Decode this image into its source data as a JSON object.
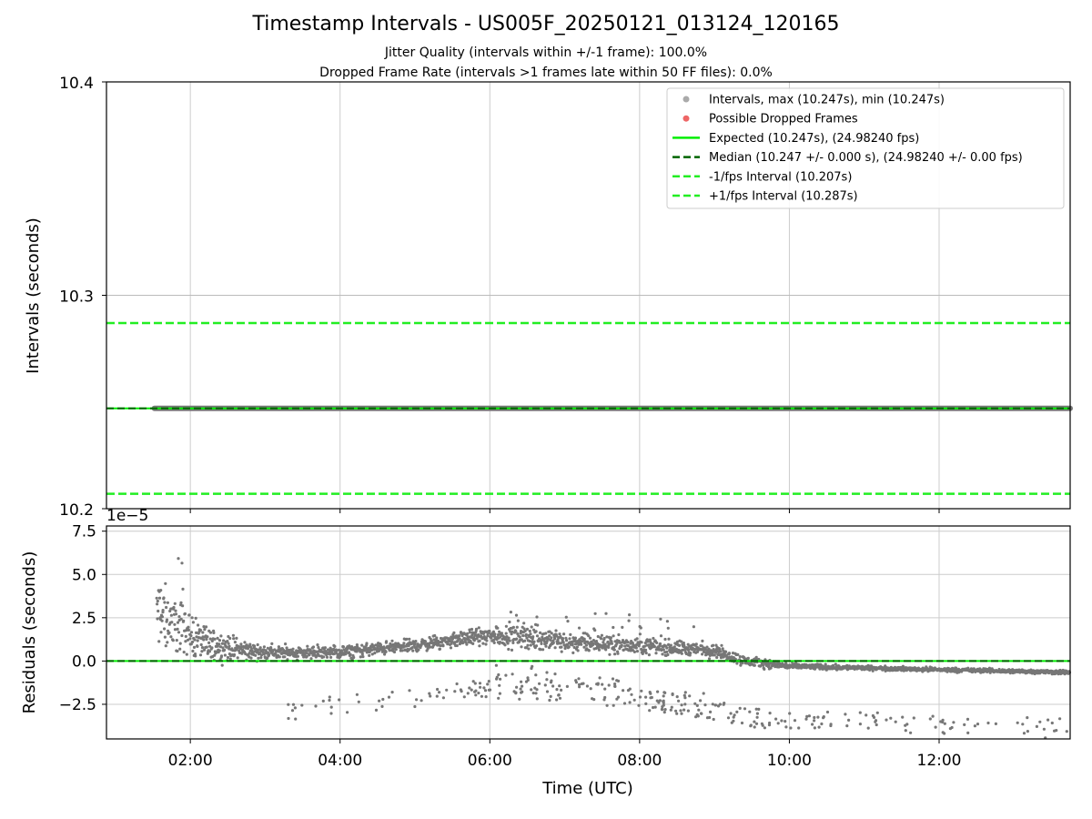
{
  "header": {
    "title": "Timestamp Intervals - US005F_20250121_013124_120165",
    "subtitle1": "Jitter Quality (intervals within +/-1 frame): 100.0%",
    "subtitle2": "Dropped Frame Rate (intervals >1 frames late within 50 FF files): 0.0%"
  },
  "colors": {
    "expected": "#00ee00",
    "interval_lines": "#22ee22",
    "median": "#006400",
    "points": "#777777",
    "dropped": "#ee4444"
  },
  "chart_data": [
    {
      "type": "scatter",
      "panel": "top",
      "ylabel": "Intervals (seconds)",
      "ylim": [
        10.2,
        10.4
      ],
      "yticks": [
        "10.2",
        "10.3",
        "10.4"
      ],
      "xlim_hours": [
        0.88,
        13.75
      ],
      "grid": true,
      "legend_position": "top-right",
      "legend": [
        {
          "kind": "marker",
          "color": "#aaaaaa",
          "text": "Intervals, max (10.247s), min (10.247s)"
        },
        {
          "kind": "marker",
          "color": "#ee6666",
          "text": "Possible Dropped Frames"
        },
        {
          "kind": "solid",
          "color": "#00ee00",
          "text": "Expected (10.247s), (24.98240 fps)"
        },
        {
          "kind": "dashed",
          "color": "#006400",
          "text": "Median (10.247 +/- 0.000 s), (24.98240 +/- 0.00 fps)"
        },
        {
          "kind": "dashed",
          "color": "#22ee22",
          "text": "-1/fps Interval (10.207s)"
        },
        {
          "kind": "dashed",
          "color": "#22ee22",
          "text": "+1/fps Interval (10.287s)"
        }
      ],
      "series": [
        {
          "name": "Intervals",
          "x_range_hours": [
            1.52,
            13.75
          ],
          "y": 10.247
        },
        {
          "name": "Expected",
          "y": 10.247
        },
        {
          "name": "Median",
          "y": 10.247
        },
        {
          "name": "-1/fps Interval",
          "y": 10.207
        },
        {
          "name": "+1/fps Interval",
          "y": 10.287
        }
      ]
    },
    {
      "type": "scatter",
      "panel": "bottom",
      "ylabel": "Residuals (seconds)",
      "xlabel": "Time (UTC)",
      "offset_text": "1e−5",
      "ylim": [
        -4.5,
        7.8
      ],
      "yticks": [
        -2.5,
        0.0,
        2.5,
        5.0,
        7.5
      ],
      "ytick_labels": [
        "−2.5",
        "0.0",
        "2.5",
        "5.0",
        "7.5"
      ],
      "xlim_hours": [
        0.88,
        13.75
      ],
      "xticks_hours": [
        2,
        4,
        6,
        8,
        10,
        12
      ],
      "xtick_labels": [
        "02:00",
        "04:00",
        "06:00",
        "08:00",
        "10:00",
        "12:00"
      ],
      "grid": true,
      "zero_lines": [
        {
          "name": "Expected",
          "y": 0
        },
        {
          "name": "Median",
          "y": 0
        }
      ],
      "residual_trend": [
        {
          "t": 1.55,
          "y": 2.8,
          "spread": 1.6
        },
        {
          "t": 1.8,
          "y": 2.2,
          "spread": 1.3
        },
        {
          "t": 2.2,
          "y": 1.0,
          "spread": 0.8
        },
        {
          "t": 2.6,
          "y": 0.7,
          "spread": 0.5
        },
        {
          "t": 3.0,
          "y": 0.5,
          "spread": 0.35
        },
        {
          "t": 4.0,
          "y": 0.5,
          "spread": 0.3
        },
        {
          "t": 5.0,
          "y": 0.9,
          "spread": 0.3
        },
        {
          "t": 5.8,
          "y": 1.4,
          "spread": 0.35
        },
        {
          "t": 6.2,
          "y": 1.5,
          "spread": 0.55
        },
        {
          "t": 7.0,
          "y": 1.1,
          "spread": 0.45
        },
        {
          "t": 8.0,
          "y": 0.9,
          "spread": 0.4
        },
        {
          "t": 9.0,
          "y": 0.6,
          "spread": 0.3
        },
        {
          "t": 9.4,
          "y": 0.0,
          "spread": 0.25
        },
        {
          "t": 10.0,
          "y": -0.3,
          "spread": 0.15
        },
        {
          "t": 11.0,
          "y": -0.4,
          "spread": 0.1
        },
        {
          "t": 12.0,
          "y": -0.5,
          "spread": 0.1
        },
        {
          "t": 13.75,
          "y": -0.65,
          "spread": 0.1
        }
      ],
      "outlier_band": [
        {
          "t": 3.3,
          "y": -3.0
        },
        {
          "t": 4.0,
          "y": -2.6
        },
        {
          "t": 5.0,
          "y": -2.2
        },
        {
          "t": 6.0,
          "y": -1.6
        },
        {
          "t": 7.0,
          "y": -1.7
        },
        {
          "t": 8.0,
          "y": -2.2
        },
        {
          "t": 9.0,
          "y": -2.8
        },
        {
          "t": 9.5,
          "y": -3.3
        },
        {
          "t": 10.5,
          "y": -3.5
        },
        {
          "t": 12.0,
          "y": -3.6
        },
        {
          "t": 13.75,
          "y": -3.9
        }
      ]
    }
  ]
}
